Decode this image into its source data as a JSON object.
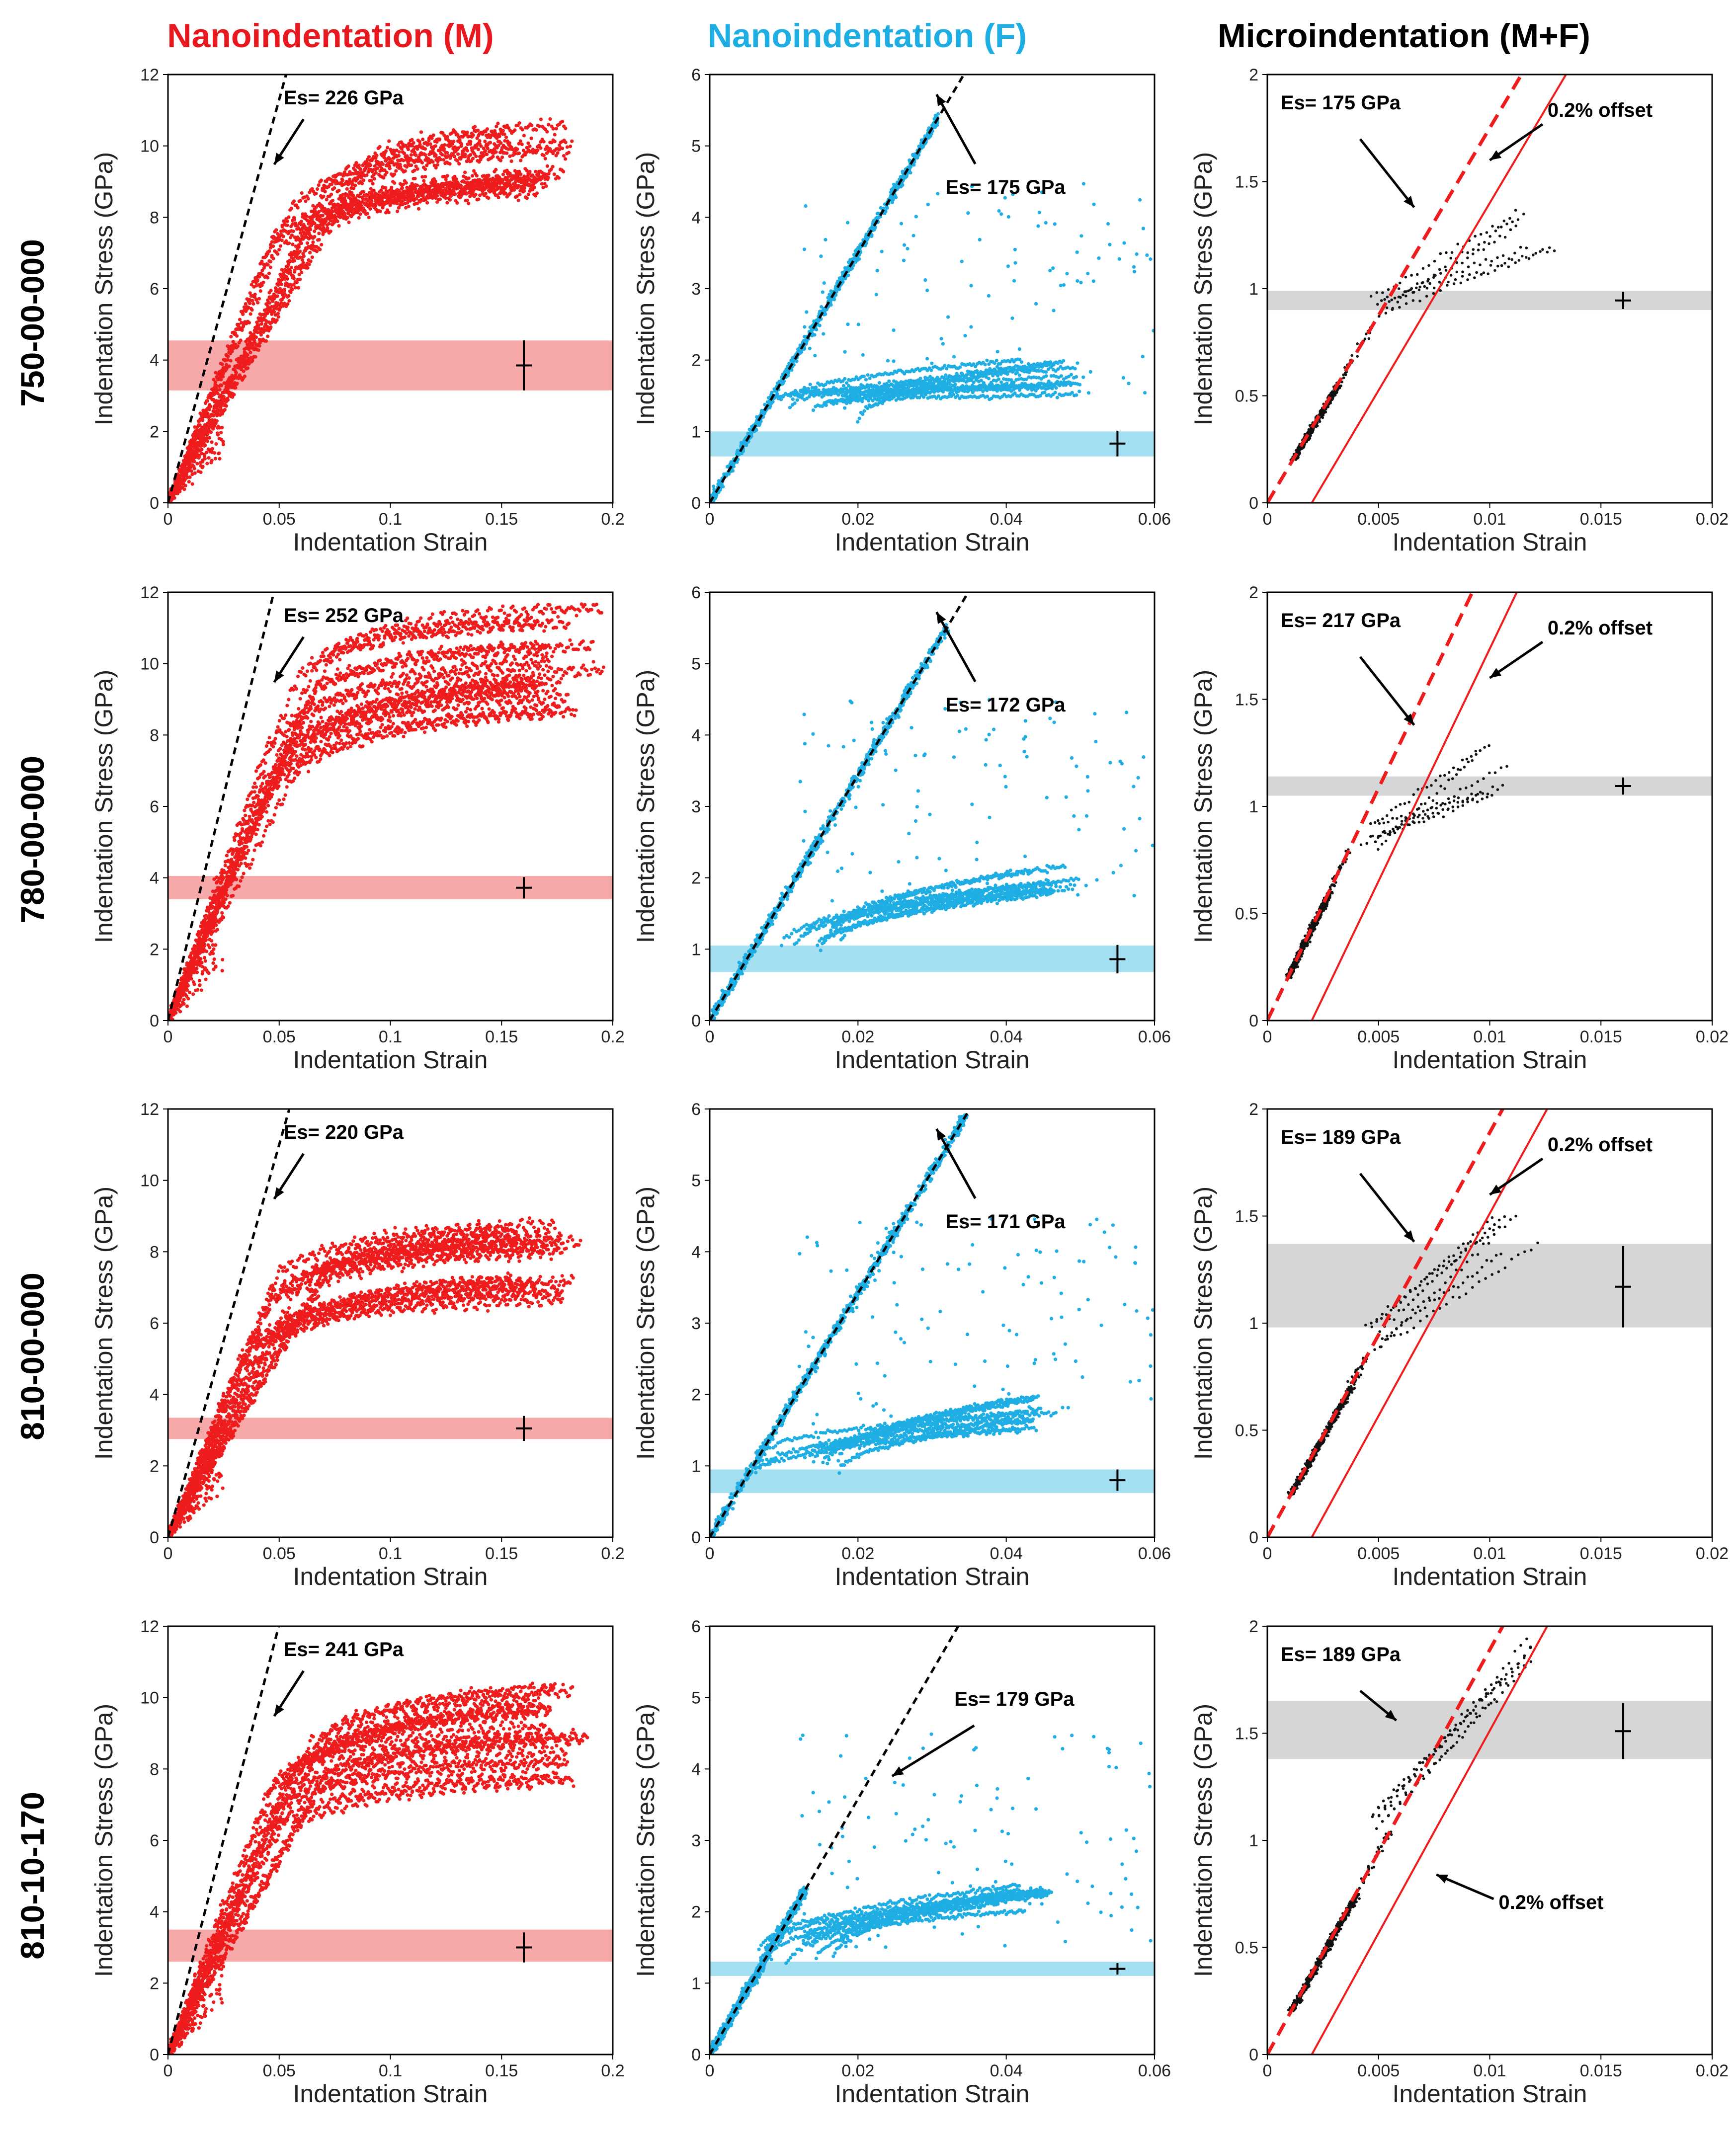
{
  "figure": {
    "column_titles": [
      {
        "text": "Nanoindentation (M)",
        "color": "#e8191e"
      },
      {
        "text": "Nanoindentation (F)",
        "color": "#1eaee3"
      },
      {
        "text": "Microindentation (M+F)",
        "color": "#000000"
      }
    ],
    "row_labels": [
      "750-00-000",
      "780-00-000",
      "810-00-000",
      "810-10-170"
    ],
    "colors": {
      "matrix": "#ee1c1c",
      "ferrite": "#1eaee3",
      "micro": "#111111",
      "band_matrix": "#f7a9a9",
      "band_ferrite": "#a5dff2",
      "band_micro": "#d6d6d6",
      "offset_line": "#ee1c1c"
    }
  },
  "chart_data": [
    {
      "type": "scatter",
      "panel": "750-00-000 / Nanoindentation (M)",
      "xlabel": "Indentation Strain",
      "ylabel": "Indentation Stress (GPa)",
      "xlim": [
        0,
        0.2
      ],
      "ylim": [
        0,
        12
      ],
      "xticks": [
        0,
        0.05,
        0.1,
        0.15,
        0.2
      ],
      "yticks": [
        0,
        2,
        4,
        6,
        8,
        10,
        12
      ],
      "modulus_line": {
        "label": "Es= 226 GPa",
        "slope": 226,
        "style": "dashed"
      },
      "yield_band": [
        3.15,
        4.55
      ],
      "yield_mean": 3.85,
      "yield_err": 0.7,
      "err_x": 0.16,
      "curve": {
        "yield": 3.0,
        "sat": 9.3,
        "x_end": 0.182,
        "spread": 1.3,
        "n": 12
      }
    },
    {
      "type": "scatter",
      "panel": "750-00-000 / Nanoindentation (F)",
      "xlabel": "Indentation Strain",
      "ylabel": "Indentation Stress (GPa)",
      "xlim": [
        0,
        0.06
      ],
      "ylim": [
        0,
        6
      ],
      "xticks": [
        0,
        0.02,
        0.04,
        0.06
      ],
      "yticks": [
        0,
        1,
        2,
        3,
        4,
        5,
        6
      ],
      "modulus_line": {
        "label": "Es= 175 GPa",
        "slope": 175,
        "style": "dashed"
      },
      "yield_band": [
        0.65,
        1.0
      ],
      "yield_mean": 0.83,
      "yield_err": 0.18,
      "err_x": 0.055,
      "curve": {
        "elastic_top": 5.4,
        "plastic_start": 0.008,
        "plastic_end": 0.05,
        "plastic_low": 1.1,
        "plastic_high": 2.0
      }
    },
    {
      "type": "scatter",
      "panel": "750-00-000 / Microindentation (M+F)",
      "xlabel": "Indentation Strain",
      "ylabel": "Indentation Stress (GPa)",
      "xlim": [
        0,
        0.02
      ],
      "ylim": [
        0,
        2
      ],
      "xticks": [
        0,
        0.005,
        0.01,
        0.015,
        0.02
      ],
      "yticks": [
        0,
        0.5,
        1,
        1.5,
        2
      ],
      "modulus_line": {
        "label": "Es= 175 GPa",
        "slope": 175,
        "style": "dashed"
      },
      "offset_label": "0.2% offset",
      "yield_band": [
        0.9,
        0.99
      ],
      "yield_mean": 0.945,
      "yield_err": 0.04,
      "err_x": 0.016,
      "curve": {
        "elastic_low": 0.2,
        "elastic_high": 0.55,
        "elastic_x": [
          0.001,
          0.003
        ],
        "plastic_x": [
          0.0045,
          0.0143
        ],
        "plastic_low": 0.85,
        "plastic_high": 1.4
      }
    },
    {
      "type": "scatter",
      "panel": "780-00-000 / Nanoindentation (M)",
      "xlabel": "Indentation Strain",
      "ylabel": "Indentation Stress (GPa)",
      "xlim": [
        0,
        0.2
      ],
      "ylim": [
        0,
        12
      ],
      "xticks": [
        0,
        0.05,
        0.1,
        0.15,
        0.2
      ],
      "yticks": [
        0,
        2,
        4,
        6,
        8,
        10,
        12
      ],
      "modulus_line": {
        "label": "Es= 252 GPa",
        "slope": 252,
        "style": "dashed"
      },
      "yield_band": [
        3.4,
        4.05
      ],
      "yield_mean": 3.72,
      "yield_err": 0.3,
      "err_x": 0.16,
      "curve": {
        "yield": 2.8,
        "sat": 10.0,
        "x_end": 0.198,
        "spread": 1.5,
        "n": 14
      }
    },
    {
      "type": "scatter",
      "panel": "780-00-000 / Nanoindentation (F)",
      "xlabel": "Indentation Strain",
      "ylabel": "Indentation Stress (GPa)",
      "xlim": [
        0,
        0.06
      ],
      "ylim": [
        0,
        6
      ],
      "xticks": [
        0,
        0.02,
        0.04,
        0.06
      ],
      "yticks": [
        0,
        1,
        2,
        3,
        4,
        5,
        6
      ],
      "modulus_line": {
        "label": "Es= 172 GPa",
        "slope": 172,
        "style": "dashed"
      },
      "yield_band": [
        0.68,
        1.05
      ],
      "yield_mean": 0.86,
      "yield_err": 0.2,
      "err_x": 0.055,
      "curve": {
        "elastic_top": 5.5,
        "plastic_start": 0.008,
        "plastic_end": 0.05,
        "plastic_low": 1.0,
        "plastic_high": 2.2
      }
    },
    {
      "type": "scatter",
      "panel": "780-00-000 / Microindentation (M+F)",
      "xlabel": "Indentation Strain",
      "ylabel": "Indentation Stress (GPa)",
      "xlim": [
        0,
        0.02
      ],
      "ylim": [
        0,
        2
      ],
      "xticks": [
        0,
        0.005,
        0.01,
        0.015,
        0.02
      ],
      "yticks": [
        0,
        0.5,
        1,
        1.5,
        2
      ],
      "modulus_line": {
        "label": "Es= 217 GPa",
        "slope": 217,
        "style": "dashed"
      },
      "offset_label": "0.2% offset",
      "yield_band": [
        1.05,
        1.14
      ],
      "yield_mean": 1.095,
      "yield_err": 0.04,
      "err_x": 0.016,
      "curve": {
        "elastic_low": 0.2,
        "elastic_high": 0.6,
        "elastic_x": [
          0.0008,
          0.0027
        ],
        "plastic_x": [
          0.004,
          0.0115
        ],
        "plastic_low": 0.8,
        "plastic_high": 1.3
      }
    },
    {
      "type": "scatter",
      "panel": "810-00-000 / Nanoindentation (M)",
      "xlabel": "Indentation Strain",
      "ylabel": "Indentation Stress (GPa)",
      "xlim": [
        0,
        0.2
      ],
      "ylim": [
        0,
        12
      ],
      "xticks": [
        0,
        0.05,
        0.1,
        0.15,
        0.2
      ],
      "yticks": [
        0,
        2,
        4,
        6,
        8,
        10,
        12
      ],
      "modulus_line": {
        "label": "Es= 220 GPa",
        "slope": 220,
        "style": "dashed"
      },
      "yield_band": [
        2.75,
        3.35
      ],
      "yield_mean": 3.05,
      "yield_err": 0.35,
      "err_x": 0.16,
      "curve": {
        "yield": 2.8,
        "sat": 7.5,
        "x_end": 0.186,
        "spread": 1.1,
        "n": 14
      }
    },
    {
      "type": "scatter",
      "panel": "810-00-000 / Nanoindentation (F)",
      "xlabel": "Indentation Strain",
      "ylabel": "Indentation Stress (GPa)",
      "xlim": [
        0,
        0.06
      ],
      "ylim": [
        0,
        6
      ],
      "xticks": [
        0,
        0.02,
        0.04,
        0.06
      ],
      "yticks": [
        0,
        1,
        2,
        3,
        4,
        5,
        6
      ],
      "modulus_line": {
        "label": "Es= 171 GPa",
        "slope": 171,
        "style": "dashed"
      },
      "yield_band": [
        0.62,
        0.95
      ],
      "yield_mean": 0.8,
      "yield_err": 0.15,
      "err_x": 0.055,
      "curve": {
        "elastic_top": 5.9,
        "plastic_start": 0.006,
        "plastic_end": 0.05,
        "plastic_low": 0.9,
        "plastic_high": 2.0
      }
    },
    {
      "type": "scatter",
      "panel": "810-00-000 / Microindentation (M+F)",
      "xlabel": "Indentation Strain",
      "ylabel": "Indentation Stress (GPa)",
      "xlim": [
        0,
        0.02
      ],
      "ylim": [
        0,
        2
      ],
      "xticks": [
        0,
        0.005,
        0.01,
        0.015,
        0.02
      ],
      "yticks": [
        0,
        0.5,
        1,
        1.5,
        2
      ],
      "modulus_line": {
        "label": "Es= 189 GPa",
        "slope": 189,
        "style": "dashed"
      },
      "offset_label": "0.2% offset",
      "yield_band": [
        0.98,
        1.37
      ],
      "yield_mean": 1.17,
      "yield_err": 0.19,
      "err_x": 0.016,
      "curve": {
        "elastic_low": 0.2,
        "elastic_high": 0.7,
        "elastic_x": [
          0.0008,
          0.003
        ],
        "plastic_x": [
          0.0042,
          0.0128
        ],
        "plastic_low": 0.85,
        "plastic_high": 1.55
      }
    },
    {
      "type": "scatter",
      "panel": "810-10-170 / Nanoindentation (M)",
      "xlabel": "Indentation Strain",
      "ylabel": "Indentation Stress (GPa)",
      "xlim": [
        0,
        0.2
      ],
      "ylim": [
        0,
        12
      ],
      "xticks": [
        0,
        0.05,
        0.1,
        0.15,
        0.2
      ],
      "yticks": [
        0,
        2,
        4,
        6,
        8,
        10,
        12
      ],
      "modulus_line": {
        "label": "Es= 241 GPa",
        "slope": 241,
        "style": "dashed"
      },
      "yield_band": [
        2.6,
        3.5
      ],
      "yield_mean": 3.0,
      "yield_err": 0.42,
      "err_x": 0.16,
      "curve": {
        "yield": 2.9,
        "sat": 8.8,
        "x_end": 0.19,
        "spread": 1.4,
        "n": 14
      }
    },
    {
      "type": "scatter",
      "panel": "810-10-170 / Nanoindentation (F)",
      "xlabel": "Indentation Strain",
      "ylabel": "Indentation Stress (GPa)",
      "xlim": [
        0,
        0.06
      ],
      "ylim": [
        0,
        6
      ],
      "xticks": [
        0,
        0.02,
        0.04,
        0.06
      ],
      "yticks": [
        0,
        1,
        2,
        3,
        4,
        5,
        6
      ],
      "modulus_line": {
        "label": "Es= 179 GPa",
        "slope": 179,
        "style": "dashed"
      },
      "yield_band": [
        1.1,
        1.3
      ],
      "yield_mean": 1.2,
      "yield_err": 0.08,
      "err_x": 0.055,
      "curve": {
        "elastic_top": 2.3,
        "plastic_start": 0.006,
        "plastic_end": 0.047,
        "plastic_low": 1.2,
        "plastic_high": 2.4
      }
    },
    {
      "type": "scatter",
      "panel": "810-10-170 / Microindentation (M+F)",
      "xlabel": "Indentation Strain",
      "ylabel": "Indentation Stress (GPa)",
      "xlim": [
        0,
        0.02
      ],
      "ylim": [
        0,
        2
      ],
      "xticks": [
        0,
        0.005,
        0.01,
        0.015,
        0.02
      ],
      "yticks": [
        0,
        0.5,
        1,
        1.5,
        2
      ],
      "modulus_line": {
        "label": "Es= 189 GPa",
        "slope": 189,
        "style": "dashed"
      },
      "offset_label": "0.2% offset",
      "yield_band": [
        1.38,
        1.65
      ],
      "yield_mean": 1.51,
      "yield_err": 0.13,
      "err_x": 0.016,
      "curve": {
        "elastic_low": 0.2,
        "elastic_high": 0.75,
        "elastic_x": [
          0.0008,
          0.0033
        ],
        "plastic_x": [
          0.0045,
          0.013
        ],
        "plastic_low": 1.05,
        "plastic_high": 2.0
      }
    }
  ]
}
